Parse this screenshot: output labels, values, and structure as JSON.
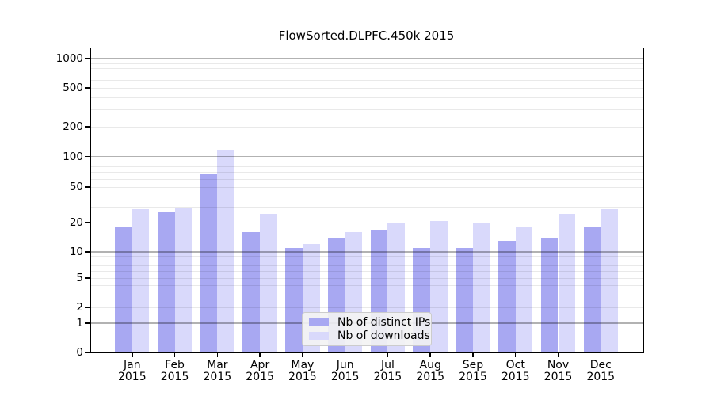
{
  "figure": {
    "title": "FlowSorted.DLPFC.450k 2015"
  },
  "legend": {
    "items": [
      {
        "label": "Nb of distinct IPs",
        "color": "#a8a8f2"
      },
      {
        "label": "Nb of downloads",
        "color": "#d9d9fb"
      }
    ]
  },
  "chart_data": {
    "type": "bar",
    "title": "FlowSorted.DLPFC.450k 2015",
    "categories": [
      "Jan 2015",
      "Feb 2015",
      "Mar 2015",
      "Apr 2015",
      "May 2015",
      "Jun 2015",
      "Jul 2015",
      "Aug 2015",
      "Sep 2015",
      "Oct 2015",
      "Nov 2015",
      "Dec 2015"
    ],
    "x_tick_months": [
      "Jan",
      "Feb",
      "Mar",
      "Apr",
      "May",
      "Jun",
      "Jul",
      "Aug",
      "Sep",
      "Oct",
      "Nov",
      "Dec"
    ],
    "x_tick_year": "2015",
    "series": [
      {
        "name": "Nb of distinct IPs",
        "color": "#a8a8f2",
        "values": [
          18,
          26,
          67,
          16,
          11,
          14,
          17,
          11,
          11,
          13,
          14,
          18
        ]
      },
      {
        "name": "Nb of downloads",
        "color": "#d9d9fb",
        "values": [
          28,
          29,
          117,
          25,
          12,
          16,
          20,
          21,
          20,
          18,
          25,
          28
        ]
      }
    ],
    "y_ticks": [
      0,
      1,
      2,
      5,
      10,
      20,
      50,
      100,
      200,
      500,
      1000
    ],
    "ylim": [
      0,
      1000
    ],
    "y_scale": "log-like (asinh: logarithmic above ~2, compressed between 0 and 1)",
    "grid": {
      "horizontal": true,
      "vertical": false,
      "minor_multiples": [
        2,
        3,
        4,
        5,
        6,
        7,
        8,
        9
      ]
    },
    "legend_position": "inside lower-center",
    "colors": {
      "grid_major": "#b5b5b5",
      "grid_minor": "#e9e9e9",
      "legend_bg": "#f3f3f3",
      "legend_border": "#cccccc",
      "axis": "#000000",
      "background": "#ffffff"
    }
  }
}
